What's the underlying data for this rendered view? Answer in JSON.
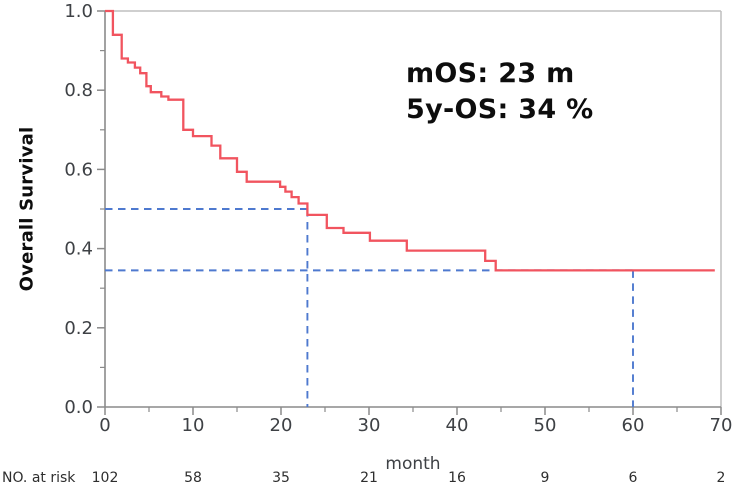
{
  "chart_data": {
    "type": "line",
    "subtype": "kaplan-meier-step",
    "title": "",
    "xlabel": "month",
    "ylabel": "Overall Survival",
    "xlim": [
      0,
      70
    ],
    "ylim": [
      0.0,
      1.0
    ],
    "grid": false,
    "x_ticks_major": [
      0,
      10,
      20,
      30,
      40,
      50,
      60,
      70
    ],
    "x_ticks_minor": [
      5,
      15,
      25,
      35,
      45,
      55,
      65
    ],
    "y_ticks_major": [
      0.0,
      0.2,
      0.4,
      0.6,
      0.8,
      1.0
    ],
    "y_ticks_minor": [
      0.1,
      0.3,
      0.5,
      0.7,
      0.9
    ],
    "series": [
      {
        "name": "Overall Survival",
        "color": "#f1545f",
        "points": [
          [
            0,
            1.0
          ],
          [
            0.9,
            0.94
          ],
          [
            1.9,
            0.88
          ],
          [
            2.6,
            0.87
          ],
          [
            3.4,
            0.857
          ],
          [
            4.0,
            0.843
          ],
          [
            4.7,
            0.81
          ],
          [
            5.2,
            0.795
          ],
          [
            6.4,
            0.784
          ],
          [
            7.2,
            0.776
          ],
          [
            8.9,
            0.7
          ],
          [
            10.0,
            0.684
          ],
          [
            12.1,
            0.66
          ],
          [
            13.1,
            0.628
          ],
          [
            15.0,
            0.594
          ],
          [
            16.1,
            0.569
          ],
          [
            19.9,
            0.556
          ],
          [
            20.5,
            0.544
          ],
          [
            21.2,
            0.53
          ],
          [
            22.0,
            0.514
          ],
          [
            23.0,
            0.485
          ],
          [
            25.2,
            0.452
          ],
          [
            27.1,
            0.44
          ],
          [
            30.1,
            0.42
          ],
          [
            34.3,
            0.395
          ],
          [
            43.2,
            0.369
          ],
          [
            44.4,
            0.345
          ],
          [
            69.3,
            0.345
          ]
        ]
      }
    ],
    "reference_lines": [
      {
        "name": "median-horizontal",
        "from": [
          0,
          0.5
        ],
        "to": [
          23,
          0.5
        ]
      },
      {
        "name": "median-vertical",
        "from": [
          23,
          0.5
        ],
        "to": [
          23,
          0
        ]
      },
      {
        "name": "5y-horizontal",
        "from": [
          0,
          0.345
        ],
        "to": [
          60,
          0.345
        ]
      },
      {
        "name": "5y-vertical",
        "from": [
          60,
          0.345
        ],
        "to": [
          60,
          0
        ]
      }
    ],
    "reference_color": "#4e79cf",
    "annotations": [
      "mOS: 23 m",
      "5y-OS: 34 %"
    ],
    "key_stats": {
      "median_os_months": 23,
      "five_year_os_percent": 34
    },
    "at_risk": {
      "label": "NO. at risk",
      "times": [
        0,
        10,
        20,
        30,
        40,
        50,
        60,
        70
      ],
      "values": [
        "102",
        "58",
        "35",
        "21",
        "16",
        "9",
        "6",
        "2"
      ]
    },
    "axis_color": "#8a8a8a",
    "border_color": "#bfbfbf",
    "tick_label_color": "#3e4145"
  }
}
